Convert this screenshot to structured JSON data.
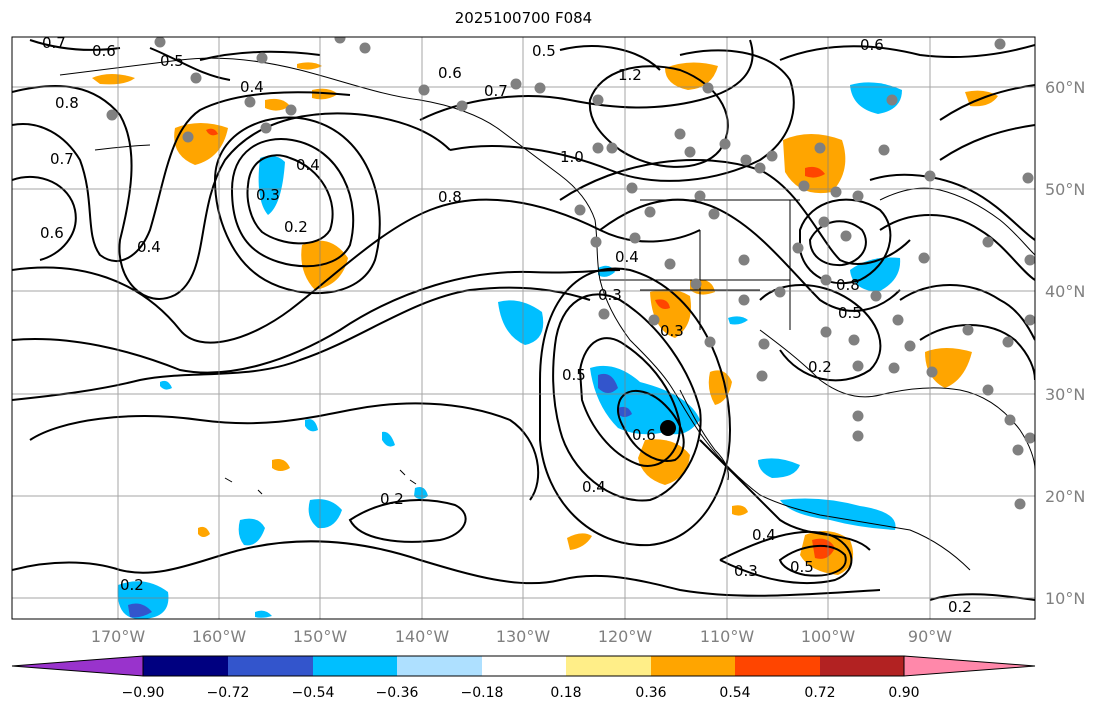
{
  "title": "2025100700 F084",
  "map": {
    "longitude_labels": [
      "170°W",
      "160°W",
      "150°W",
      "140°W",
      "130°W",
      "120°W",
      "110°W",
      "100°W",
      "90°W"
    ],
    "latitude_labels": [
      "60°N",
      "50°N",
      "40°N",
      "30°N",
      "20°N",
      "10°N"
    ],
    "contour_labels": [
      "0.7",
      "0.6",
      "0.5",
      "0.4",
      "0.6",
      "0.7",
      "0.5",
      "0.6",
      "1.2",
      "0.8",
      "0.7",
      "0.6",
      "0.4",
      "0.3",
      "0.2",
      "0.4",
      "0.8",
      "1.0",
      "0.4",
      "0.3",
      "0.5",
      "0.6",
      "0.4",
      "0.3",
      "0.2",
      "0.5",
      "0.8",
      "0.2",
      "0.4",
      "0.3",
      "0.5",
      "0.2",
      "0.2"
    ],
    "marker": "storm-center",
    "colors": {
      "grid": "#808080",
      "contour": "#000000",
      "station": "#808080"
    }
  },
  "colorbar": {
    "tick_labels": [
      "−0.90",
      "−0.72",
      "−0.54",
      "−0.36",
      "−0.18",
      "0.18",
      "0.36",
      "0.54",
      "0.72",
      "0.90"
    ],
    "colors": [
      "#9933cc",
      "#000080",
      "#3355cc",
      "#00bfff",
      "#aee0ff",
      "#ffffff",
      "#ffee88",
      "#ffa500",
      "#ff4500",
      "#b22222",
      "#ff88aa"
    ]
  }
}
